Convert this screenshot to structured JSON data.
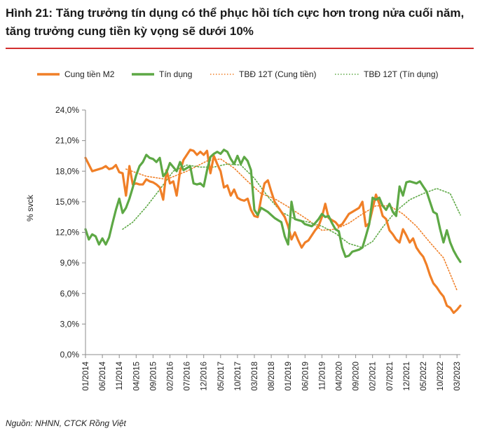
{
  "figure": {
    "title": "Hình 21: Tăng trưởng tín dụng có thể phục hồi tích cực hơn trong nửa cuối năm, tăng trưởng cung tiền kỳ vọng sẽ dưới 10%",
    "source": "Nguồn: NHNN, CTCK Rồng Việt"
  },
  "colors": {
    "m2": "#F07F27",
    "credit": "#5DA845",
    "accent": "#d32f2f",
    "axis": "#8c8c8c"
  },
  "chart_data": {
    "type": "line",
    "title": "",
    "ylabel": "% svck",
    "xlabel": "",
    "ylim": [
      0,
      24
    ],
    "yticks": [
      "0,0%",
      "3,0%",
      "6,0%",
      "9,0%",
      "12,0%",
      "15,0%",
      "18,0%",
      "21,0%",
      "24,0%"
    ],
    "x_start": "01/2014",
    "x_end": "06/2023",
    "x_tick_labels": [
      "01/2014",
      "06/2014",
      "11/2014",
      "04/2015",
      "09/2015",
      "02/2016",
      "07/2016",
      "12/2016",
      "05/2017",
      "10/2017",
      "03/2018",
      "08/2018",
      "01/2019",
      "06/2019",
      "11/2019",
      "04/2020",
      "09/2020",
      "02/2021",
      "07/2021",
      "12/2021",
      "05/2022",
      "10/2022",
      "03/2023"
    ],
    "legend": "top",
    "series": [
      {
        "name": "Cung tiền M2",
        "key": "m2",
        "style": "solid",
        "points": [
          [
            0,
            19.3
          ],
          [
            2,
            18
          ],
          [
            4,
            18.2
          ],
          [
            5,
            18.3
          ],
          [
            6,
            18.5
          ],
          [
            7,
            18.2
          ],
          [
            8,
            18.3
          ],
          [
            9,
            18.6
          ],
          [
            10,
            17.9
          ],
          [
            11,
            17.8
          ],
          [
            12,
            15.6
          ],
          [
            13,
            18.5
          ],
          [
            14,
            16.7
          ],
          [
            15,
            16.8
          ],
          [
            16,
            16.7
          ],
          [
            17,
            16.7
          ],
          [
            18,
            17.2
          ],
          [
            19,
            17.0
          ],
          [
            20,
            16.9
          ],
          [
            21,
            16.7
          ],
          [
            22,
            16.4
          ],
          [
            23,
            15.2
          ],
          [
            24,
            18.1
          ],
          [
            25,
            16.8
          ],
          [
            26,
            17.0
          ],
          [
            27,
            15.6
          ],
          [
            28,
            18.0
          ],
          [
            29,
            19.1
          ],
          [
            30,
            19.6
          ],
          [
            31,
            20.1
          ],
          [
            32,
            20.0
          ],
          [
            33,
            19.6
          ],
          [
            34,
            19.9
          ],
          [
            35,
            19.6
          ],
          [
            36,
            20.0
          ],
          [
            37,
            17.8
          ],
          [
            38,
            19.5
          ],
          [
            39,
            18.7
          ],
          [
            40,
            18.0
          ],
          [
            41,
            16.4
          ],
          [
            42,
            16.6
          ],
          [
            43,
            15.6
          ],
          [
            44,
            16.2
          ],
          [
            45,
            15.4
          ],
          [
            46,
            15.2
          ],
          [
            47,
            15.1
          ],
          [
            48,
            15.3
          ],
          [
            49,
            14.2
          ],
          [
            50,
            13.6
          ],
          [
            51,
            13.5
          ],
          [
            52,
            15.3
          ],
          [
            53,
            16.8
          ],
          [
            54,
            17.1
          ],
          [
            55,
            16.0
          ],
          [
            56,
            15.0
          ],
          [
            57,
            14.5
          ],
          [
            58,
            14.0
          ],
          [
            59,
            13.5
          ],
          [
            60,
            12.6
          ],
          [
            61,
            11.3
          ],
          [
            62,
            12.0
          ],
          [
            63,
            11.2
          ],
          [
            64,
            10.5
          ],
          [
            65,
            11.0
          ],
          [
            66,
            11.2
          ],
          [
            67,
            11.7
          ],
          [
            68,
            12.2
          ],
          [
            69,
            12.6
          ],
          [
            70,
            13.5
          ],
          [
            71,
            14.8
          ],
          [
            72,
            13.4
          ],
          [
            73,
            13.2
          ],
          [
            74,
            13.0
          ],
          [
            75,
            12.6
          ],
          [
            76,
            12.8
          ],
          [
            77,
            13.3
          ],
          [
            78,
            13.8
          ],
          [
            79,
            14.0
          ],
          [
            80,
            14.2
          ],
          [
            81,
            14.4
          ],
          [
            82,
            15.0
          ],
          [
            83,
            12.6
          ],
          [
            84,
            12.9
          ],
          [
            85,
            14.3
          ],
          [
            86,
            15.7
          ],
          [
            87,
            14.8
          ],
          [
            88,
            13.6
          ],
          [
            89,
            13.3
          ],
          [
            90,
            12.2
          ],
          [
            91,
            11.8
          ],
          [
            92,
            11.3
          ],
          [
            93,
            11.0
          ],
          [
            94,
            12.3
          ],
          [
            95,
            11.7
          ],
          [
            96,
            11.0
          ],
          [
            97,
            11.4
          ],
          [
            98,
            10.5
          ],
          [
            99,
            10.0
          ],
          [
            100,
            9.6
          ],
          [
            101,
            8.8
          ],
          [
            102,
            7.8
          ],
          [
            103,
            7.0
          ],
          [
            104,
            6.6
          ],
          [
            105,
            6.1
          ],
          [
            106,
            5.7
          ],
          [
            107,
            4.8
          ],
          [
            108,
            4.6
          ],
          [
            109,
            4.1
          ],
          [
            110,
            4.4
          ],
          [
            111,
            4.8
          ]
        ]
      },
      {
        "name": "Tín dụng",
        "key": "credit",
        "style": "solid",
        "points": [
          [
            0,
            12.3
          ],
          [
            1,
            11.3
          ],
          [
            2,
            11.8
          ],
          [
            3,
            11.6
          ],
          [
            4,
            10.8
          ],
          [
            5,
            11.4
          ],
          [
            6,
            10.8
          ],
          [
            7,
            11.5
          ],
          [
            8,
            12.9
          ],
          [
            9,
            14.2
          ],
          [
            10,
            15.3
          ],
          [
            11,
            13.9
          ],
          [
            12,
            14.4
          ],
          [
            13,
            15.3
          ],
          [
            14,
            16.4
          ],
          [
            15,
            17.6
          ],
          [
            16,
            18.5
          ],
          [
            17,
            18.9
          ],
          [
            18,
            19.6
          ],
          [
            19,
            19.3
          ],
          [
            20,
            19.2
          ],
          [
            21,
            18.9
          ],
          [
            22,
            19.3
          ],
          [
            23,
            17.5
          ],
          [
            24,
            17.9
          ],
          [
            25,
            18.8
          ],
          [
            26,
            18.4
          ],
          [
            27,
            18.0
          ],
          [
            28,
            18.9
          ],
          [
            29,
            18.1
          ],
          [
            30,
            18.3
          ],
          [
            31,
            18.5
          ],
          [
            32,
            16.8
          ],
          [
            33,
            16.7
          ],
          [
            34,
            16.8
          ],
          [
            35,
            16.5
          ],
          [
            36,
            18.1
          ],
          [
            37,
            19.4
          ],
          [
            38,
            19.7
          ],
          [
            39,
            19.9
          ],
          [
            40,
            19.7
          ],
          [
            41,
            20.1
          ],
          [
            42,
            19.9
          ],
          [
            43,
            19.2
          ],
          [
            44,
            18.7
          ],
          [
            45,
            19.5
          ],
          [
            46,
            18.7
          ],
          [
            47,
            19.4
          ],
          [
            48,
            19.0
          ],
          [
            49,
            18.1
          ],
          [
            50,
            14.2
          ],
          [
            51,
            13.7
          ],
          [
            52,
            14.4
          ],
          [
            53,
            14.2
          ],
          [
            54,
            14.0
          ],
          [
            55,
            13.7
          ],
          [
            56,
            13.4
          ],
          [
            57,
            13.2
          ],
          [
            58,
            13.0
          ],
          [
            59,
            11.6
          ],
          [
            60,
            10.8
          ],
          [
            61,
            15.0
          ],
          [
            62,
            13.3
          ],
          [
            63,
            13.2
          ],
          [
            64,
            13.1
          ],
          [
            65,
            12.8
          ],
          [
            66,
            12.7
          ],
          [
            67,
            12.6
          ],
          [
            68,
            12.9
          ],
          [
            69,
            13.3
          ],
          [
            70,
            13.8
          ],
          [
            71,
            13.5
          ],
          [
            72,
            13.6
          ],
          [
            73,
            12.9
          ],
          [
            74,
            12.3
          ],
          [
            75,
            12.1
          ],
          [
            76,
            10.5
          ],
          [
            77,
            9.6
          ],
          [
            78,
            9.7
          ],
          [
            79,
            10.1
          ],
          [
            80,
            10.2
          ],
          [
            81,
            10.3
          ],
          [
            82,
            10.5
          ],
          [
            83,
            11.6
          ],
          [
            84,
            12.8
          ],
          [
            85,
            15.4
          ],
          [
            86,
            15.2
          ],
          [
            87,
            15.4
          ],
          [
            88,
            14.6
          ],
          [
            89,
            14.2
          ],
          [
            90,
            14.8
          ],
          [
            91,
            14.0
          ],
          [
            92,
            13.6
          ],
          [
            93,
            16.5
          ],
          [
            94,
            15.6
          ],
          [
            95,
            16.9
          ],
          [
            96,
            17.0
          ],
          [
            97,
            16.9
          ],
          [
            98,
            16.8
          ],
          [
            99,
            17.0
          ],
          [
            100,
            16.5
          ],
          [
            101,
            16.0
          ],
          [
            102,
            15.0
          ],
          [
            103,
            14.0
          ],
          [
            104,
            13.8
          ],
          [
            105,
            12.3
          ],
          [
            106,
            11.0
          ],
          [
            107,
            12.2
          ],
          [
            108,
            11.0
          ],
          [
            109,
            10.2
          ],
          [
            110,
            9.6
          ],
          [
            111,
            9.1
          ]
        ]
      },
      {
        "name": "TBĐ 12T (Cung tiền)",
        "key": "m2",
        "style": "dotted",
        "points": [
          [
            12,
            18.2
          ],
          [
            18,
            17.5
          ],
          [
            24,
            17.2
          ],
          [
            30,
            18.0
          ],
          [
            36,
            19.0
          ],
          [
            40,
            19.2
          ],
          [
            44,
            18.3
          ],
          [
            48,
            17.0
          ],
          [
            52,
            15.8
          ],
          [
            56,
            15.3
          ],
          [
            60,
            14.5
          ],
          [
            66,
            13.2
          ],
          [
            70,
            12.2
          ],
          [
            74,
            12.3
          ],
          [
            78,
            12.9
          ],
          [
            82,
            13.8
          ],
          [
            86,
            14.6
          ],
          [
            90,
            14.6
          ],
          [
            94,
            13.8
          ],
          [
            98,
            12.6
          ],
          [
            102,
            11.0
          ],
          [
            106,
            9.5
          ],
          [
            110,
            6.3
          ]
        ]
      },
      {
        "name": "TBĐ 12T (Tín dụng)",
        "key": "credit",
        "style": "dotted",
        "points": [
          [
            11,
            12.3
          ],
          [
            14,
            13.0
          ],
          [
            18,
            14.5
          ],
          [
            22,
            16.2
          ],
          [
            26,
            18.0
          ],
          [
            30,
            18.6
          ],
          [
            34,
            18.4
          ],
          [
            38,
            18.4
          ],
          [
            42,
            18.7
          ],
          [
            46,
            18.6
          ],
          [
            50,
            17.3
          ],
          [
            54,
            15.5
          ],
          [
            58,
            14.0
          ],
          [
            62,
            13.3
          ],
          [
            66,
            13.0
          ],
          [
            70,
            12.6
          ],
          [
            74,
            11.9
          ],
          [
            78,
            10.9
          ],
          [
            82,
            10.5
          ],
          [
            85,
            11.1
          ],
          [
            88,
            12.5
          ],
          [
            92,
            14.1
          ],
          [
            96,
            15.2
          ],
          [
            100,
            15.8
          ],
          [
            104,
            16.3
          ],
          [
            108,
            15.8
          ],
          [
            111,
            13.7
          ]
        ]
      }
    ]
  }
}
